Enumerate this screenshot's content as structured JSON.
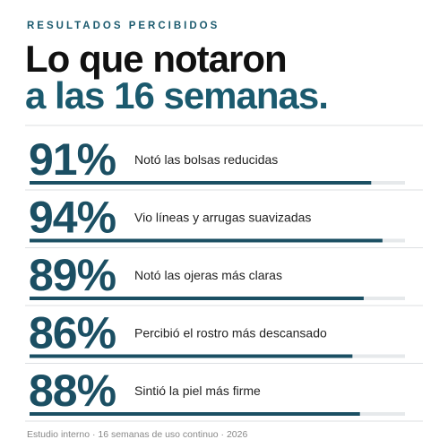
{
  "chart_data": {
    "type": "bar",
    "kicker": "RESULTADOS PERCIBIDOS",
    "title_lines": [
      "Lo que notaron",
      "a las 16 semanas."
    ],
    "categories": [
      "Notó las bolsas reducidas",
      "Vio líneas y arrugas suavizadas",
      "Notó las ojeras más claras",
      "Percibió el rostro más descansado",
      "Sintió la piel más firme"
    ],
    "values": [
      91,
      94,
      89,
      86,
      88
    ],
    "value_labels": [
      "91%",
      "94%",
      "89%",
      "86%",
      "88%"
    ],
    "xlim": [
      0,
      100
    ],
    "color": "#1b4f63",
    "footer": "Estudio interno · 16 semanas de uso continuo · 2026"
  }
}
